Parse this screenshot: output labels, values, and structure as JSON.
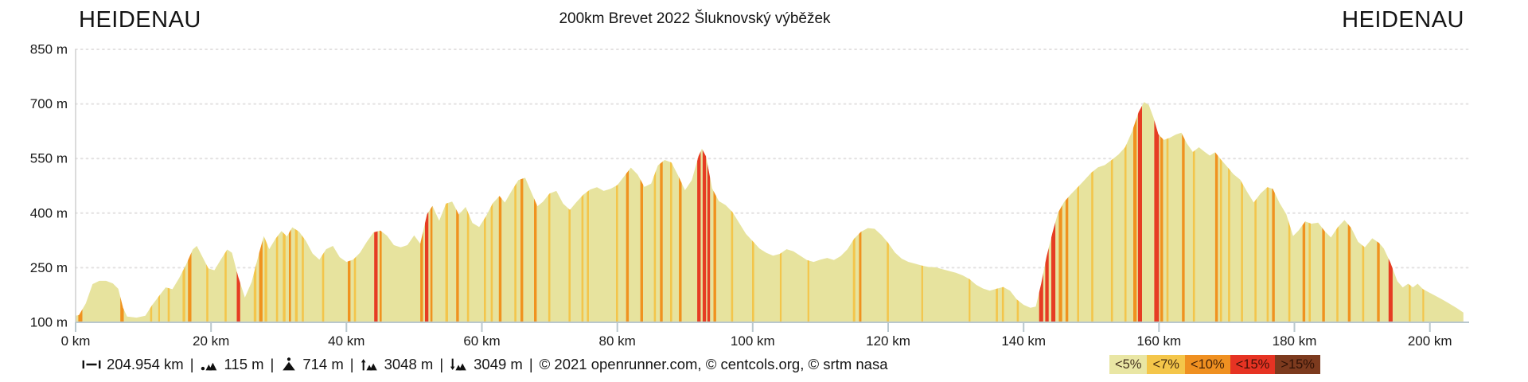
{
  "header": {
    "start_location": "HEIDENAU",
    "end_location": "HEIDENAU",
    "title": "200km Brevet 2022 Šluknovský výběžek"
  },
  "stats": {
    "separator": "|",
    "items": [
      {
        "icon": "distance-icon",
        "text": "204.954 km"
      },
      {
        "icon": "min-altitude-icon",
        "text": "115 m"
      },
      {
        "icon": "max-altitude-icon",
        "text": "714 m"
      },
      {
        "icon": "total-ascent-icon",
        "text": "3048 m"
      },
      {
        "icon": "total-descent-icon",
        "text": "3049 m"
      }
    ],
    "copyright": "© 2021 openrunner.com, © centcols.org, © srtm nasa"
  },
  "legend": {
    "items": [
      {
        "label": "<5%",
        "color": "#e9e6a4"
      },
      {
        "label": "<7%",
        "color": "#f4c64a"
      },
      {
        "label": "<10%",
        "color": "#ef9021"
      },
      {
        "label": "<15%",
        "color": "#e63323"
      },
      {
        "label": ">15%",
        "color": "#7c3a1e"
      }
    ]
  },
  "colors": {
    "grid": "#e3e1e1",
    "y_axis": "#cfcfcf",
    "x_axis": "#b9c7cd",
    "tick_text": "#1a1a1a"
  },
  "chart_data": {
    "type": "area",
    "title": "200km Brevet 2022 Šluknovský výběžek",
    "x_unit": "km",
    "y_unit": "m",
    "xlim": [
      0,
      205.8
    ],
    "ylim": [
      100,
      850
    ],
    "end_km": 204.954,
    "grid": "dotted-horizontal",
    "legend_position": "bottom-right",
    "x_ticks": [
      0,
      20,
      40,
      60,
      80,
      100,
      120,
      140,
      160,
      180,
      200
    ],
    "x_tick_labels": [
      "0 km",
      "20 km",
      "40 km",
      "60 km",
      "80 km",
      "100 km",
      "120 km",
      "140 km",
      "160 km",
      "180 km",
      "200 km"
    ],
    "y_ticks": [
      100,
      250,
      400,
      550,
      700,
      850
    ],
    "y_tick_labels": [
      "100 m",
      "250 m",
      "400 m",
      "550 m",
      "700 m",
      "850 m"
    ],
    "profile_fill": "#e7e39e",
    "grade_classes": {
      "c5": "#e7e39e",
      "c7": "#f3c54b",
      "c10": "#f0921f",
      "c15": "#e63c23",
      "c20": "#7c3a1e"
    },
    "profile": [
      [
        0,
        118
      ],
      [
        0.5,
        120
      ],
      [
        1.5,
        152
      ],
      [
        2.5,
        205
      ],
      [
        3.5,
        214
      ],
      [
        4.5,
        214
      ],
      [
        5.5,
        207
      ],
      [
        6.3,
        192
      ],
      [
        7,
        140
      ],
      [
        7.6,
        116
      ],
      [
        9,
        113
      ],
      [
        10.3,
        118
      ],
      [
        11.3,
        147
      ],
      [
        12.3,
        172
      ],
      [
        13.3,
        196
      ],
      [
        14.3,
        191
      ],
      [
        15.3,
        222
      ],
      [
        16.3,
        258
      ],
      [
        17.3,
        300
      ],
      [
        17.9,
        310
      ],
      [
        18.7,
        281
      ],
      [
        19.6,
        248
      ],
      [
        20.5,
        243
      ],
      [
        21.4,
        271
      ],
      [
        22.4,
        300
      ],
      [
        23.1,
        291
      ],
      [
        24,
        226
      ],
      [
        25,
        168
      ],
      [
        26,
        211
      ],
      [
        27,
        283
      ],
      [
        27.8,
        337
      ],
      [
        28.6,
        301
      ],
      [
        29.5,
        329
      ],
      [
        30.4,
        351
      ],
      [
        31.2,
        336
      ],
      [
        32,
        361
      ],
      [
        33,
        349
      ],
      [
        34,
        324
      ],
      [
        35,
        289
      ],
      [
        36,
        272
      ],
      [
        37,
        301
      ],
      [
        38,
        310
      ],
      [
        39,
        279
      ],
      [
        40,
        266
      ],
      [
        41,
        272
      ],
      [
        42,
        291
      ],
      [
        43,
        321
      ],
      [
        44,
        347
      ],
      [
        45,
        352
      ],
      [
        46,
        338
      ],
      [
        47,
        312
      ],
      [
        48,
        306
      ],
      [
        49,
        312
      ],
      [
        50,
        339
      ],
      [
        50.9,
        316
      ],
      [
        51.9,
        397
      ],
      [
        52.7,
        420
      ],
      [
        53.7,
        379
      ],
      [
        54.7,
        426
      ],
      [
        55.6,
        432
      ],
      [
        56.6,
        396
      ],
      [
        57.6,
        417
      ],
      [
        58.6,
        373
      ],
      [
        59.6,
        362
      ],
      [
        60.6,
        391
      ],
      [
        61.6,
        427
      ],
      [
        62.6,
        447
      ],
      [
        63.4,
        429
      ],
      [
        64.4,
        461
      ],
      [
        65.4,
        491
      ],
      [
        66.4,
        497
      ],
      [
        67.4,
        453
      ],
      [
        68.2,
        419
      ],
      [
        69,
        431
      ],
      [
        70,
        454
      ],
      [
        71,
        461
      ],
      [
        72,
        426
      ],
      [
        73,
        409
      ],
      [
        74,
        431
      ],
      [
        75,
        451
      ],
      [
        76,
        465
      ],
      [
        77,
        471
      ],
      [
        78,
        461
      ],
      [
        79,
        467
      ],
      [
        80,
        477
      ],
      [
        81,
        501
      ],
      [
        82,
        525
      ],
      [
        83,
        506
      ],
      [
        84,
        472
      ],
      [
        85,
        481
      ],
      [
        86,
        531
      ],
      [
        87,
        546
      ],
      [
        88,
        539
      ],
      [
        89,
        503
      ],
      [
        90,
        463
      ],
      [
        91,
        491
      ],
      [
        92,
        557
      ],
      [
        92.5,
        577
      ],
      [
        93.1,
        556
      ],
      [
        94,
        468
      ],
      [
        95,
        433
      ],
      [
        96,
        422
      ],
      [
        97,
        403
      ],
      [
        98,
        373
      ],
      [
        99,
        343
      ],
      [
        100,
        323
      ],
      [
        101,
        303
      ],
      [
        102,
        291
      ],
      [
        103,
        283
      ],
      [
        104,
        288
      ],
      [
        105,
        301
      ],
      [
        106,
        295
      ],
      [
        107,
        283
      ],
      [
        108,
        271
      ],
      [
        109,
        266
      ],
      [
        110,
        272
      ],
      [
        111,
        277
      ],
      [
        112,
        271
      ],
      [
        113,
        282
      ],
      [
        114,
        301
      ],
      [
        115,
        330
      ],
      [
        116,
        349
      ],
      [
        117,
        359
      ],
      [
        118,
        357
      ],
      [
        119,
        340
      ],
      [
        120,
        318
      ],
      [
        121,
        292
      ],
      [
        122,
        275
      ],
      [
        123,
        266
      ],
      [
        124,
        261
      ],
      [
        125,
        256
      ],
      [
        126,
        252
      ],
      [
        127,
        251
      ],
      [
        128,
        246
      ],
      [
        129,
        241
      ],
      [
        130,
        236
      ],
      [
        131,
        229
      ],
      [
        132,
        219
      ],
      [
        133,
        203
      ],
      [
        134,
        193
      ],
      [
        135,
        187
      ],
      [
        136,
        192
      ],
      [
        137,
        197
      ],
      [
        138,
        187
      ],
      [
        139,
        163
      ],
      [
        140,
        148
      ],
      [
        141,
        140
      ],
      [
        141.8,
        143
      ],
      [
        142.6,
        206
      ],
      [
        143.4,
        281
      ],
      [
        144.3,
        348
      ],
      [
        145.1,
        401
      ],
      [
        146,
        431
      ],
      [
        147,
        452
      ],
      [
        148,
        471
      ],
      [
        149,
        491
      ],
      [
        150,
        511
      ],
      [
        151,
        526
      ],
      [
        152,
        532
      ],
      [
        153,
        546
      ],
      [
        154,
        561
      ],
      [
        155,
        581
      ],
      [
        156,
        623
      ],
      [
        157,
        678
      ],
      [
        157.8,
        705
      ],
      [
        158.5,
        697
      ],
      [
        159.2,
        662
      ],
      [
        159.9,
        617
      ],
      [
        160.7,
        601
      ],
      [
        161.6,
        607
      ],
      [
        162.5,
        616
      ],
      [
        163.3,
        621
      ],
      [
        164.1,
        592
      ],
      [
        165,
        568
      ],
      [
        165.9,
        581
      ],
      [
        166.7,
        569
      ],
      [
        167.5,
        558
      ],
      [
        168.3,
        567
      ],
      [
        169.2,
        546
      ],
      [
        170,
        529
      ],
      [
        171,
        507
      ],
      [
        172,
        492
      ],
      [
        173,
        459
      ],
      [
        174,
        429
      ],
      [
        175,
        454
      ],
      [
        176,
        471
      ],
      [
        176.8,
        467
      ],
      [
        177.8,
        428
      ],
      [
        178.8,
        397
      ],
      [
        179.8,
        337
      ],
      [
        180.6,
        352
      ],
      [
        181.6,
        377
      ],
      [
        182.5,
        371
      ],
      [
        183.5,
        374
      ],
      [
        184.5,
        350
      ],
      [
        185.4,
        333
      ],
      [
        186.4,
        361
      ],
      [
        187.4,
        381
      ],
      [
        188.4,
        359
      ],
      [
        189.4,
        321
      ],
      [
        190.4,
        306
      ],
      [
        191.5,
        331
      ],
      [
        192.5,
        318
      ],
      [
        193.2,
        303
      ],
      [
        194.2,
        263
      ],
      [
        195.2,
        213
      ],
      [
        196,
        196
      ],
      [
        196.8,
        206
      ],
      [
        197.5,
        196
      ],
      [
        198.2,
        206
      ],
      [
        199,
        191
      ],
      [
        200,
        181
      ],
      [
        201,
        171
      ],
      [
        202,
        161
      ],
      [
        203,
        150
      ],
      [
        204,
        139
      ],
      [
        204.954,
        127
      ]
    ],
    "gradient_stripes": [
      [
        0.4,
        0.6,
        "c10"
      ],
      [
        6.6,
        0.5,
        "c10"
      ],
      [
        11,
        0.3,
        "c7"
      ],
      [
        12.2,
        0.25,
        "c7"
      ],
      [
        13.6,
        0.3,
        "c7"
      ],
      [
        15.8,
        0.4,
        "c7"
      ],
      [
        16.6,
        0.5,
        "c10"
      ],
      [
        19.3,
        0.3,
        "c7"
      ],
      [
        22,
        0.3,
        "c7"
      ],
      [
        23.8,
        0.5,
        "c15"
      ],
      [
        26.3,
        0.4,
        "c7"
      ],
      [
        27.1,
        0.5,
        "c10"
      ],
      [
        27.9,
        0.4,
        "c7"
      ],
      [
        29.6,
        0.3,
        "c7"
      ],
      [
        30.6,
        0.4,
        "c7"
      ],
      [
        31.5,
        0.3,
        "c10"
      ],
      [
        32.4,
        0.4,
        "c7"
      ],
      [
        33.4,
        0.3,
        "c7"
      ],
      [
        36.4,
        0.3,
        "c7"
      ],
      [
        40.2,
        0.4,
        "c10"
      ],
      [
        41.1,
        0.3,
        "c7"
      ],
      [
        44.1,
        0.5,
        "c15"
      ],
      [
        44.9,
        0.3,
        "c10"
      ],
      [
        50.9,
        0.4,
        "c10"
      ],
      [
        51.6,
        0.5,
        "c15"
      ],
      [
        52.4,
        0.3,
        "c10"
      ],
      [
        54.6,
        0.4,
        "c7"
      ],
      [
        56.2,
        0.4,
        "c10"
      ],
      [
        57.8,
        0.3,
        "c7"
      ],
      [
        60.3,
        0.3,
        "c7"
      ],
      [
        61.3,
        0.3,
        "c7"
      ],
      [
        62.5,
        0.4,
        "c10"
      ],
      [
        64.8,
        0.3,
        "c7"
      ],
      [
        65.7,
        0.4,
        "c10"
      ],
      [
        67.7,
        0.4,
        "c10"
      ],
      [
        69.8,
        0.3,
        "c7"
      ],
      [
        72.8,
        0.3,
        "c7"
      ],
      [
        74.7,
        0.3,
        "c7"
      ],
      [
        75.5,
        0.3,
        "c7"
      ],
      [
        79.8,
        0.3,
        "c7"
      ],
      [
        81.3,
        0.4,
        "c10"
      ],
      [
        83.4,
        0.4,
        "c10"
      ],
      [
        85.4,
        0.3,
        "c7"
      ],
      [
        86.3,
        0.4,
        "c10"
      ],
      [
        87.8,
        0.3,
        "c7"
      ],
      [
        89.1,
        0.4,
        "c10"
      ],
      [
        91.8,
        0.5,
        "c15"
      ],
      [
        92.6,
        0.5,
        "c15"
      ],
      [
        93.3,
        0.4,
        "c15"
      ],
      [
        94.2,
        0.4,
        "c10"
      ],
      [
        96.8,
        0.3,
        "c7"
      ],
      [
        99.9,
        0.3,
        "c7"
      ],
      [
        104,
        0.25,
        "c7"
      ],
      [
        108.1,
        0.25,
        "c7"
      ],
      [
        114.8,
        0.35,
        "c7"
      ],
      [
        115.7,
        0.35,
        "c10"
      ],
      [
        119.8,
        0.3,
        "c7"
      ],
      [
        124.9,
        0.25,
        "c7"
      ],
      [
        131.9,
        0.25,
        "c7"
      ],
      [
        135.9,
        0.3,
        "c7"
      ],
      [
        136.8,
        0.3,
        "c7"
      ],
      [
        139,
        0.3,
        "c7"
      ],
      [
        142.3,
        0.6,
        "c15"
      ],
      [
        143.2,
        0.5,
        "c15"
      ],
      [
        144.1,
        0.6,
        "c15"
      ],
      [
        145.2,
        0.5,
        "c10"
      ],
      [
        146.2,
        0.4,
        "c10"
      ],
      [
        147.9,
        0.3,
        "c7"
      ],
      [
        150,
        0.3,
        "c7"
      ],
      [
        152.9,
        0.3,
        "c7"
      ],
      [
        154.9,
        0.3,
        "c7"
      ],
      [
        156.2,
        0.5,
        "c10"
      ],
      [
        156.9,
        0.6,
        "c15"
      ],
      [
        159.3,
        0.7,
        "c15"
      ],
      [
        160.2,
        0.4,
        "c10"
      ],
      [
        161.1,
        0.3,
        "c7"
      ],
      [
        163.4,
        0.4,
        "c10"
      ],
      [
        165,
        0.3,
        "c7"
      ],
      [
        168.3,
        0.4,
        "c10"
      ],
      [
        169,
        0.3,
        "c7"
      ],
      [
        170.2,
        0.3,
        "c7"
      ],
      [
        172.1,
        0.3,
        "c7"
      ],
      [
        174.1,
        0.3,
        "c7"
      ],
      [
        175.9,
        0.3,
        "c7"
      ],
      [
        176.7,
        0.4,
        "c10"
      ],
      [
        179.1,
        0.3,
        "c7"
      ],
      [
        181.2,
        0.4,
        "c10"
      ],
      [
        182.1,
        0.3,
        "c7"
      ],
      [
        184.1,
        0.4,
        "c10"
      ],
      [
        186.2,
        0.3,
        "c7"
      ],
      [
        187.9,
        0.4,
        "c10"
      ],
      [
        190,
        0.3,
        "c7"
      ],
      [
        192.2,
        0.4,
        "c10"
      ],
      [
        193.9,
        0.6,
        "c15"
      ],
      [
        196.9,
        0.25,
        "c7"
      ],
      [
        198.9,
        0.2,
        "c7"
      ]
    ]
  }
}
